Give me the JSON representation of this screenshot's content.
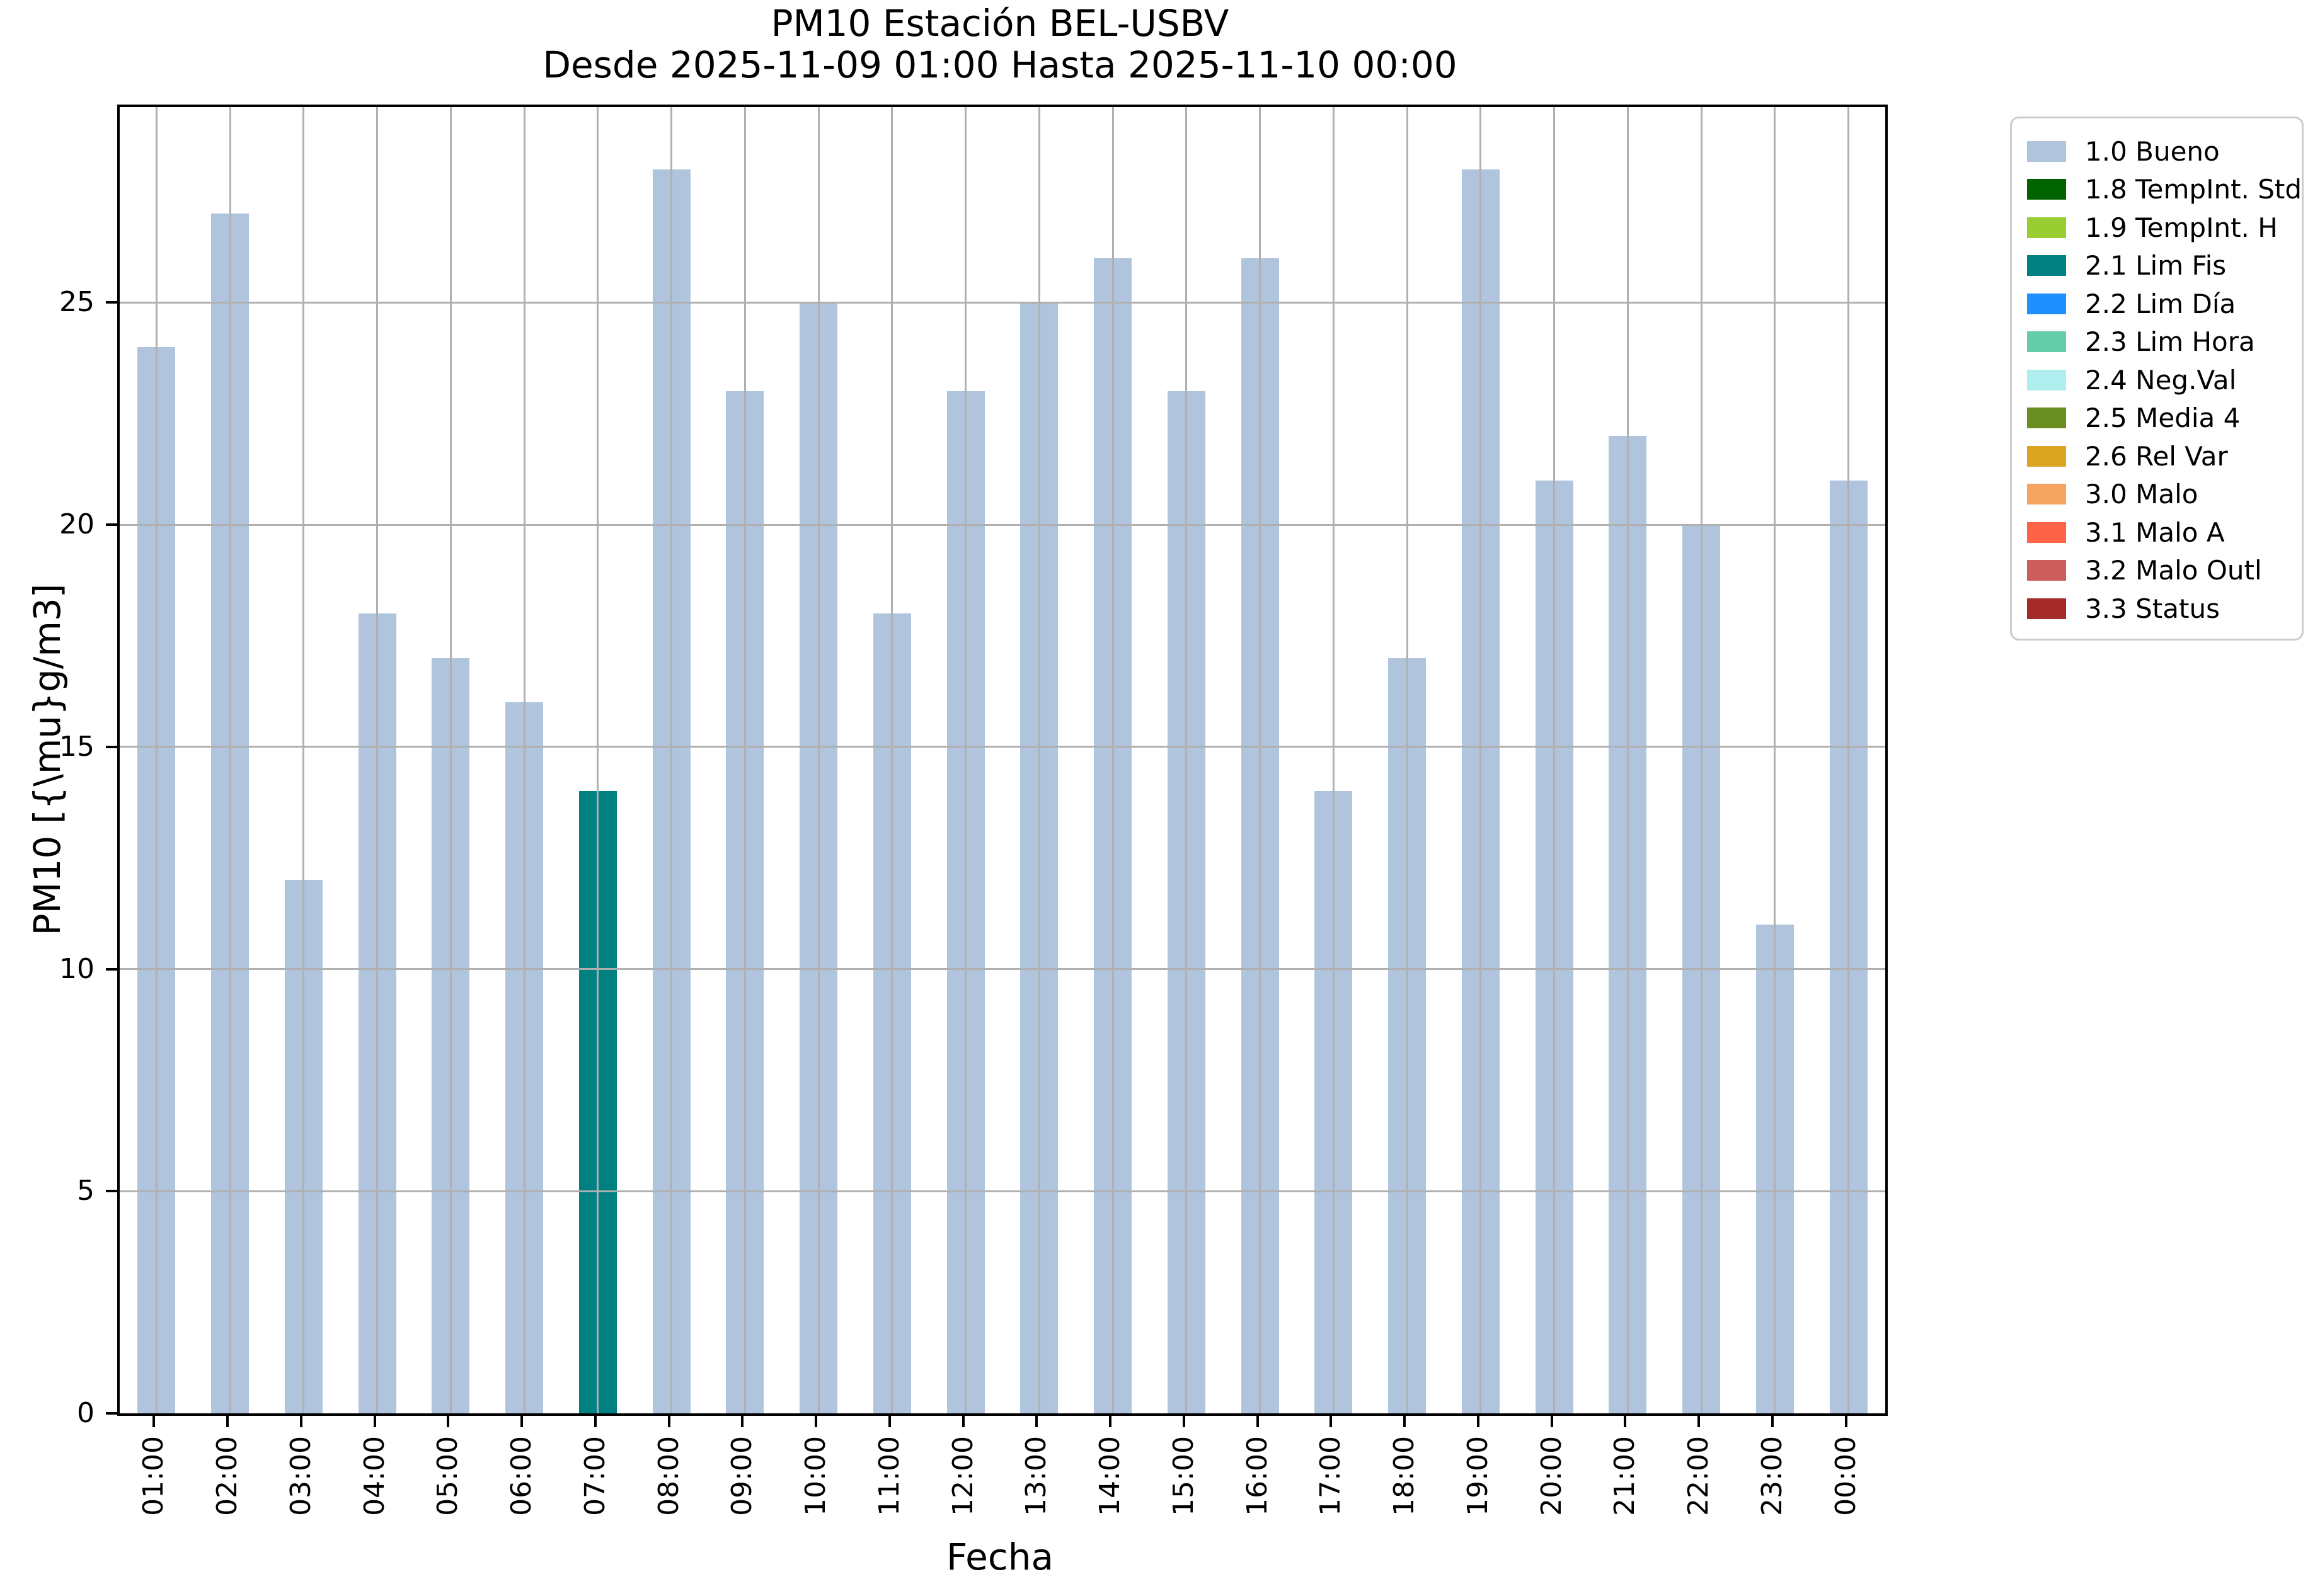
{
  "chart_data": {
    "type": "bar",
    "title": "PM10 Estación BEL-USBV",
    "subtitle": "Desde 2025-11-09 01:00 Hasta 2025-11-10 00:00",
    "xlabel": "Fecha",
    "ylabel": "PM10 [{\\mu}g/m3]",
    "categories": [
      "01:00",
      "02:00",
      "03:00",
      "04:00",
      "05:00",
      "06:00",
      "07:00",
      "08:00",
      "09:00",
      "10:00",
      "11:00",
      "12:00",
      "13:00",
      "14:00",
      "15:00",
      "16:00",
      "17:00",
      "18:00",
      "19:00",
      "20:00",
      "21:00",
      "22:00",
      "23:00",
      "00:00"
    ],
    "values": [
      24,
      27,
      12,
      18,
      17,
      16,
      14,
      28,
      23,
      25,
      18,
      23,
      25,
      26,
      23,
      26,
      14,
      17,
      28,
      21,
      22,
      20,
      11,
      21
    ],
    "statuses": [
      "1.0 Bueno",
      "1.0 Bueno",
      "1.0 Bueno",
      "1.0 Bueno",
      "1.0 Bueno",
      "1.0 Bueno",
      "2.1 Lim Fis",
      "1.0 Bueno",
      "1.0 Bueno",
      "1.0 Bueno",
      "1.0 Bueno",
      "1.0 Bueno",
      "1.0 Bueno",
      "1.0 Bueno",
      "1.0 Bueno",
      "1.0 Bueno",
      "1.0 Bueno",
      "1.0 Bueno",
      "1.0 Bueno",
      "1.0 Bueno",
      "1.0 Bueno",
      "1.0 Bueno",
      "1.0 Bueno",
      "1.0 Bueno"
    ],
    "ylim": [
      0,
      29.4
    ],
    "yticks": [
      0,
      5,
      10,
      15,
      20,
      25
    ],
    "grid": true,
    "legend_position": "outside upper right",
    "legend": [
      {
        "label": "1.0 Bueno",
        "color": "#b0c4de"
      },
      {
        "label": "1.8 TempInt. Std",
        "color": "#006400"
      },
      {
        "label": "1.9 TempInt. H",
        "color": "#9acd32"
      },
      {
        "label": "2.1 Lim Fis",
        "color": "#008080"
      },
      {
        "label": "2.2 Lim Día",
        "color": "#1e90ff"
      },
      {
        "label": "2.3 Lim Hora",
        "color": "#66cdaa"
      },
      {
        "label": "2.4 Neg.Val",
        "color": "#afeeee"
      },
      {
        "label": "2.5 Media 4",
        "color": "#6b8e23"
      },
      {
        "label": "2.6 Rel Var",
        "color": "#daa520"
      },
      {
        "label": "3.0 Malo",
        "color": "#f4a460"
      },
      {
        "label": "3.1 Malo A",
        "color": "#ff6347"
      },
      {
        "label": "3.2 Malo Outl",
        "color": "#cd5c5c"
      },
      {
        "label": "3.3 Status",
        "color": "#a52a2a"
      }
    ]
  },
  "colors": {
    "background": "#ffffff",
    "axis": "#000000",
    "grid": "#b0b0b0",
    "legend_border": "#cccccc",
    "bar_default": "#b0c4de",
    "bar_highlight": "#008080"
  }
}
